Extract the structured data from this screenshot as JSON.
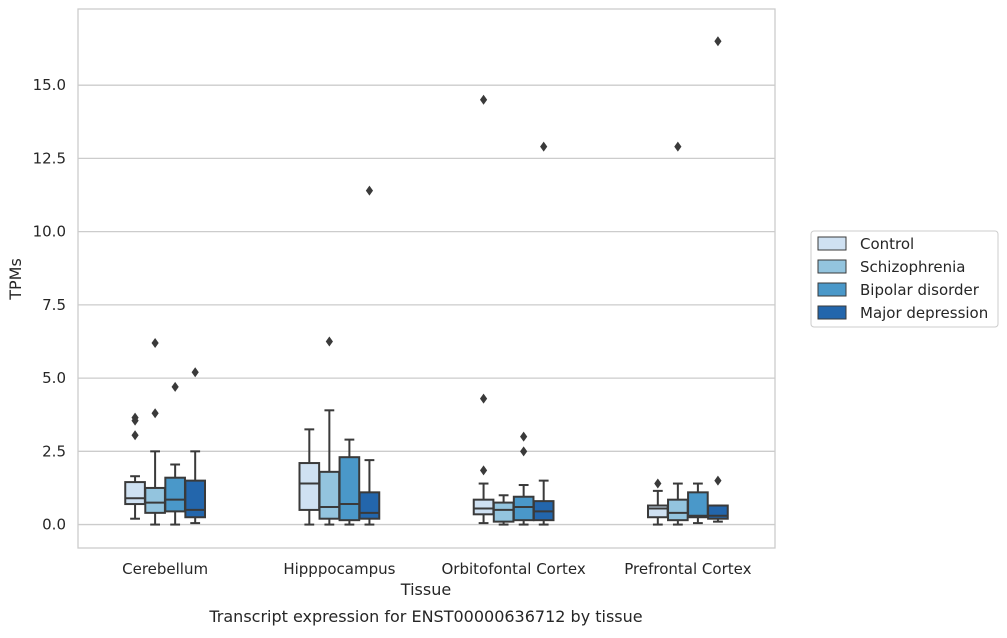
{
  "chart_data": {
    "type": "box",
    "title": "",
    "caption": "Transcript expression for ENST00000636712 by tissue",
    "xlabel": "Tissue",
    "ylabel": "TPMs",
    "ylim": [
      -0.8,
      17.6
    ],
    "yticks": [
      0.0,
      2.5,
      5.0,
      7.5,
      10.0,
      12.5,
      15.0
    ],
    "ytick_labels": [
      "0.0",
      "2.5",
      "5.0",
      "7.5",
      "10.0",
      "12.5",
      "15.0"
    ],
    "grid": "horizontal",
    "legend_position": "right",
    "categories": [
      "Cerebellum",
      "Hipppocampus",
      "Orbitofontal Cortex",
      "Prefrontal Cortex"
    ],
    "series": [
      {
        "name": "Control",
        "color": "#cfe1f2",
        "boxes": [
          {
            "whislo": 0.2,
            "q1": 0.7,
            "med": 0.9,
            "q3": 1.45,
            "whishi": 1.65,
            "fliers": [
              3.05,
              3.55,
              3.65
            ]
          },
          {
            "whislo": 0.0,
            "q1": 0.5,
            "med": 1.4,
            "q3": 2.1,
            "whishi": 3.25,
            "fliers": []
          },
          {
            "whislo": 0.05,
            "q1": 0.35,
            "med": 0.55,
            "q3": 0.85,
            "whishi": 1.4,
            "fliers": [
              1.85,
              4.3,
              14.5
            ]
          },
          {
            "whislo": 0.0,
            "q1": 0.25,
            "med": 0.55,
            "q3": 0.65,
            "whishi": 1.15,
            "fliers": [
              1.4
            ]
          }
        ]
      },
      {
        "name": "Schizophrenia",
        "color": "#93c4de",
        "boxes": [
          {
            "whislo": 0.0,
            "q1": 0.4,
            "med": 0.75,
            "q3": 1.25,
            "whishi": 2.5,
            "fliers": [
              3.8,
              6.2
            ]
          },
          {
            "whislo": 0.0,
            "q1": 0.2,
            "med": 0.6,
            "q3": 1.8,
            "whishi": 3.9,
            "fliers": [
              6.25
            ]
          },
          {
            "whislo": 0.0,
            "q1": 0.1,
            "med": 0.5,
            "q3": 0.75,
            "whishi": 1.0,
            "fliers": []
          },
          {
            "whislo": 0.0,
            "q1": 0.15,
            "med": 0.4,
            "q3": 0.85,
            "whishi": 1.4,
            "fliers": [
              12.9
            ]
          }
        ]
      },
      {
        "name": "Bipolar disorder",
        "color": "#4a98c9",
        "boxes": [
          {
            "whislo": 0.0,
            "q1": 0.45,
            "med": 0.85,
            "q3": 1.6,
            "whishi": 2.05,
            "fliers": [
              4.7
            ]
          },
          {
            "whislo": 0.0,
            "q1": 0.15,
            "med": 0.7,
            "q3": 2.3,
            "whishi": 2.9,
            "fliers": []
          },
          {
            "whislo": 0.0,
            "q1": 0.15,
            "med": 0.6,
            "q3": 0.95,
            "whishi": 1.35,
            "fliers": [
              2.5,
              3.0
            ]
          },
          {
            "whislo": 0.05,
            "q1": 0.25,
            "med": 0.3,
            "q3": 1.1,
            "whishi": 1.4,
            "fliers": []
          }
        ]
      },
      {
        "name": "Major depression",
        "color": "#2366ac",
        "boxes": [
          {
            "whislo": 0.05,
            "q1": 0.25,
            "med": 0.5,
            "q3": 1.5,
            "whishi": 2.5,
            "fliers": [
              5.2
            ]
          },
          {
            "whislo": 0.0,
            "q1": 0.2,
            "med": 0.4,
            "q3": 1.1,
            "whishi": 2.2,
            "fliers": [
              11.4
            ]
          },
          {
            "whislo": 0.0,
            "q1": 0.15,
            "med": 0.45,
            "q3": 0.8,
            "whishi": 1.5,
            "fliers": [
              12.9
            ]
          },
          {
            "whislo": 0.1,
            "q1": 0.2,
            "med": 0.3,
            "q3": 0.65,
            "whishi": 0.65,
            "fliers": [
              1.5,
              16.5
            ]
          }
        ]
      }
    ]
  }
}
